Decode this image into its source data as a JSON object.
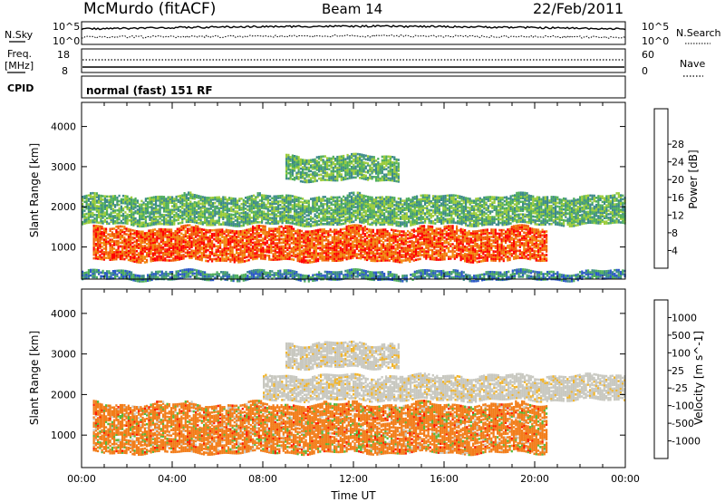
{
  "header": {
    "station": "McMurdo (fitACF)",
    "beam": "Beam 14",
    "date": "22/Feb/2011"
  },
  "panels": {
    "nsky_label": "N.Sky",
    "nsky_tick_top": "10^5",
    "nsky_tick_bottom": "10^0",
    "nsearch_label": "N.Search",
    "nsearch_tick_top": "10^5",
    "nsearch_tick_bottom": "10^0",
    "freq_label_line1": "Freq.",
    "freq_label_line2": "[MHz]",
    "freq_tick_top": "18",
    "freq_tick_bottom": "8",
    "nave_label": "Nave",
    "nave_tick_top": "60",
    "nave_tick_bottom": "0",
    "cpid_label": "CPID",
    "cpid_value": "normal (fast) 151 RF"
  },
  "chart_data": [
    {
      "type": "heatmap",
      "name": "Power",
      "ylabel": "Slant Range [km]",
      "ylim": [
        200,
        4600
      ],
      "yticks": [
        1000,
        2000,
        3000,
        4000
      ],
      "xlim": [
        0,
        24
      ],
      "colorbar": {
        "label": "Power [dB]",
        "ticks": [
          "4",
          "8",
          "12",
          "16",
          "20",
          "24",
          "28"
        ],
        "colors": [
          "#0a0aff",
          "#2b57c8",
          "#3d8a8a",
          "#4fae5c",
          "#9ccc3a",
          "#f2bd1e",
          "#f28a10",
          "#f25a0a",
          "#ff0000"
        ]
      },
      "bands": [
        {
          "name": "near-range clutter",
          "x": [
            0,
            24
          ],
          "y": [
            230,
            420
          ],
          "value": 6
        },
        {
          "name": "main echo",
          "x": [
            0.5,
            20.5
          ],
          "y": [
            700,
            1500
          ],
          "value": 26
        },
        {
          "name": "upper echo",
          "x": [
            0,
            24
          ],
          "y": [
            1600,
            2300
          ],
          "value": 13
        },
        {
          "name": "far echo",
          "x": [
            9,
            14
          ],
          "y": [
            2700,
            3300
          ],
          "value": 10
        }
      ]
    },
    {
      "type": "heatmap",
      "name": "Velocity",
      "ylabel": "Slant Range [km]",
      "xlabel": "Time UT",
      "ylim": [
        200,
        4600
      ],
      "yticks": [
        1000,
        2000,
        3000,
        4000
      ],
      "xlim": [
        0,
        24
      ],
      "xticks": [
        "00:00",
        "04:00",
        "08:00",
        "12:00",
        "16:00",
        "20:00",
        "00:00"
      ],
      "colorbar": {
        "label": "Velocity [m s^-1]",
        "ticks": [
          "1000",
          "500",
          "100",
          "25",
          "-25",
          "-100",
          "-500",
          "-1000"
        ],
        "colors": [
          "#1f3fb8",
          "#2e6bc7",
          "#3f9a6a",
          "#58b83a",
          "#c8c8c0",
          "#f2b428",
          "#f27d1a",
          "#f05a10",
          "#ff1a00"
        ]
      },
      "bands": [
        {
          "name": "main echo",
          "x": [
            0.5,
            20.5
          ],
          "y": [
            600,
            1800
          ],
          "value": -400
        },
        {
          "name": "upper echo",
          "x": [
            8,
            24
          ],
          "y": [
            1900,
            2500
          ],
          "value": 0
        },
        {
          "name": "far echo",
          "x": [
            9,
            14
          ],
          "y": [
            2700,
            3300
          ],
          "value": 0
        }
      ]
    }
  ]
}
